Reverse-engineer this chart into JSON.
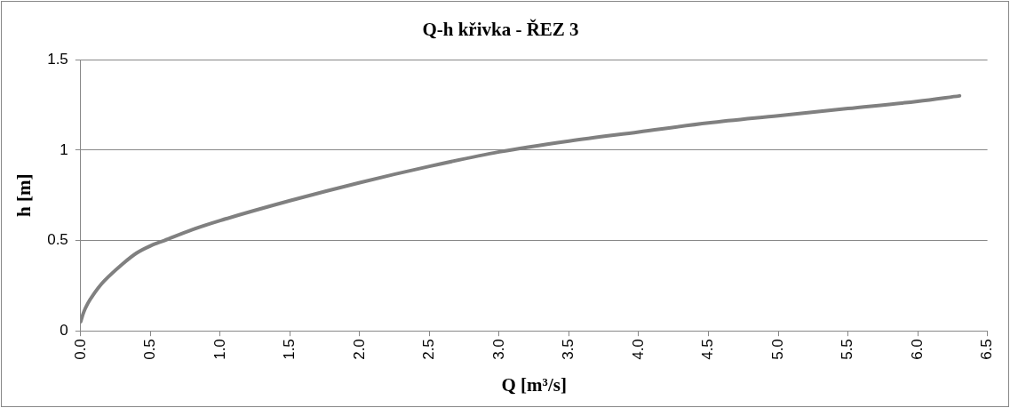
{
  "chart_data": {
    "type": "line",
    "title": "Q-h křivka - ŘEZ 3",
    "xlabel": "Q [m³/s]",
    "ylabel": "h [m]",
    "x": [
      0,
      0.02,
      0.05,
      0.1,
      0.15,
      0.2,
      0.3,
      0.4,
      0.5,
      0.6,
      0.8,
      1.0,
      1.5,
      2.0,
      2.5,
      3.0,
      3.5,
      4.0,
      4.5,
      5.0,
      5.5,
      6.0,
      6.3
    ],
    "series": [
      {
        "color": "#808080",
        "values": [
          0.05,
          0.1,
          0.15,
          0.21,
          0.26,
          0.3,
          0.37,
          0.43,
          0.47,
          0.5,
          0.56,
          0.61,
          0.72,
          0.82,
          0.91,
          0.99,
          1.05,
          1.1,
          1.15,
          1.19,
          1.23,
          1.27,
          1.3
        ]
      }
    ],
    "xlim": [
      0,
      6.5
    ],
    "xticks": [
      {
        "value": 0,
        "label": "0.0"
      },
      {
        "value": 0.5,
        "label": "0.5"
      },
      {
        "value": 1,
        "label": "1.0"
      },
      {
        "value": 1.5,
        "label": "1.5"
      },
      {
        "value": 2,
        "label": "2.0"
      },
      {
        "value": 2.5,
        "label": "2.5"
      },
      {
        "value": 3,
        "label": "3.0"
      },
      {
        "value": 3.5,
        "label": "3.5"
      },
      {
        "value": 4,
        "label": "4.0"
      },
      {
        "value": 4.5,
        "label": "4.5"
      },
      {
        "value": 5,
        "label": "5.0"
      },
      {
        "value": 5.5,
        "label": "5.5"
      },
      {
        "value": 6,
        "label": "6.0"
      },
      {
        "value": 6.5,
        "label": "6.5"
      }
    ],
    "ylim": [
      0,
      1.5
    ],
    "yticks": [
      0,
      0.5,
      1,
      1.5
    ],
    "grid": "y",
    "marker": "none",
    "line_style": "solid",
    "legend": false
  }
}
